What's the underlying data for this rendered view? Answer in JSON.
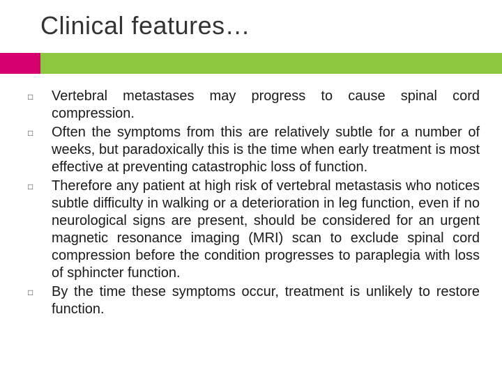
{
  "slide": {
    "title": "Clinical features…",
    "accent_bar_color": "#8dc63f",
    "accent_left_color": "#d6006e",
    "title_color": "#333333",
    "title_fontsize": 36,
    "body_fontsize": 20,
    "body_color": "#1a1a1a",
    "bullet_glyph": "□",
    "bullets": [
      "Vertebral metastases may progress to cause spinal cord compression.",
      "Often the symptoms from this are relatively subtle for a number of weeks, but paradoxically this is the time when early treatment is most effective at preventing catastrophic loss of function.",
      "Therefore any patient at high risk of vertebral metastasis who notices subtle difficulty in walking or a deterioration in leg function, even if no neurological signs are present, should be considered for an urgent magnetic resonance imaging (MRI) scan to exclude spinal cord compression before the condition progresses to paraplegia with loss of sphincter function.",
      "By the time these symptoms occur, treatment is unlikely to restore function."
    ]
  }
}
